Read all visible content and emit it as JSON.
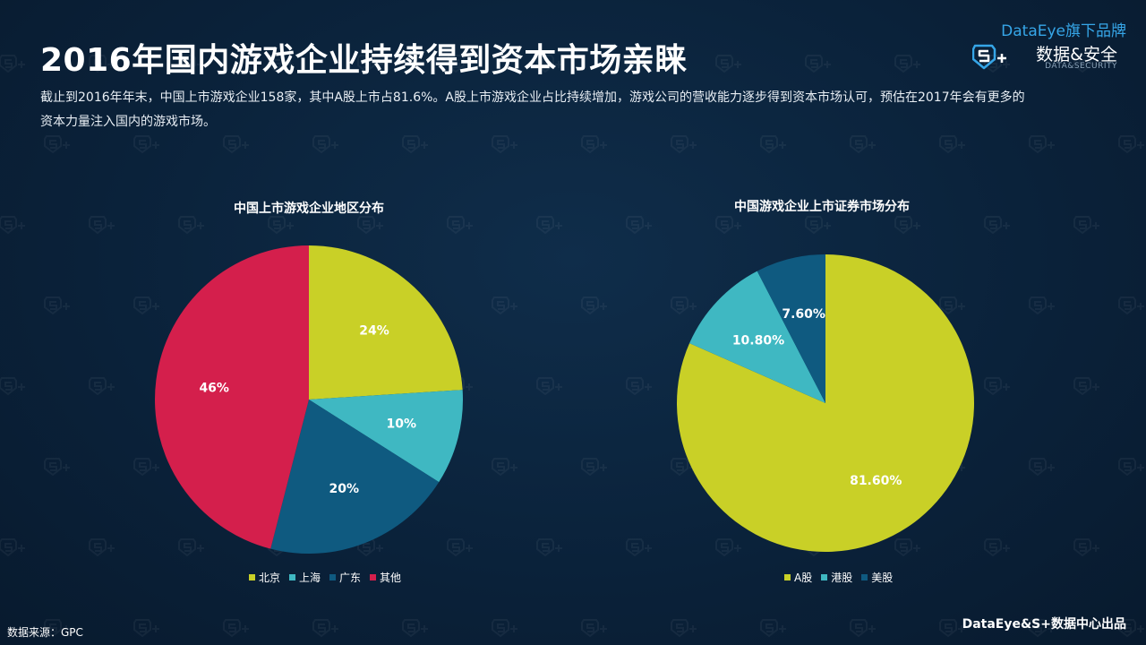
{
  "page": {
    "title": "2016年国内游戏企业持续得到资本市场亲睐",
    "subtitle": "截止到2016年年末，中国上市游戏企业158家，其中A股上市占81.6%。A股上市游戏企业占比持续增加，游戏公司的营收能力逐步得到资本市场认可，预估在2017年会有更多的资本力量注入国内的游戏市场。",
    "source": "数据来源：GPC",
    "footer": "DataEye&S+数据中心出品"
  },
  "brand": {
    "top": "DataEye旗下品牌",
    "main": "数据&安全",
    "sub": "DATA&SECURITY",
    "logo_icon": "s-plus-shield-icon"
  },
  "colors": {
    "background": "#0a2139",
    "yellow": "#c9d027",
    "teal": "#3fb8c2",
    "navy": "#0f5a80",
    "crimson": "#d41f4c",
    "brand_blue": "#36a6e8"
  },
  "chart_data": [
    {
      "type": "pie",
      "title": "中国上市游戏企业地区分布",
      "categories": [
        "北京",
        "上海",
        "广东",
        "其他"
      ],
      "values": [
        24,
        10,
        20,
        46
      ],
      "labels": [
        "24%",
        "10%",
        "20%",
        "46%"
      ],
      "colors": [
        "#c9d027",
        "#3fb8c2",
        "#0f5a80",
        "#d41f4c"
      ],
      "legend": "bottom"
    },
    {
      "type": "pie",
      "title": "中国游戏企业上市证券市场分布",
      "categories": [
        "A股",
        "港股",
        "美股"
      ],
      "values": [
        81.6,
        10.8,
        7.6
      ],
      "labels": [
        "81.60%",
        "10.80%",
        "7.60%"
      ],
      "colors": [
        "#c9d027",
        "#3fb8c2",
        "#0f5a80"
      ],
      "legend": "bottom"
    }
  ]
}
